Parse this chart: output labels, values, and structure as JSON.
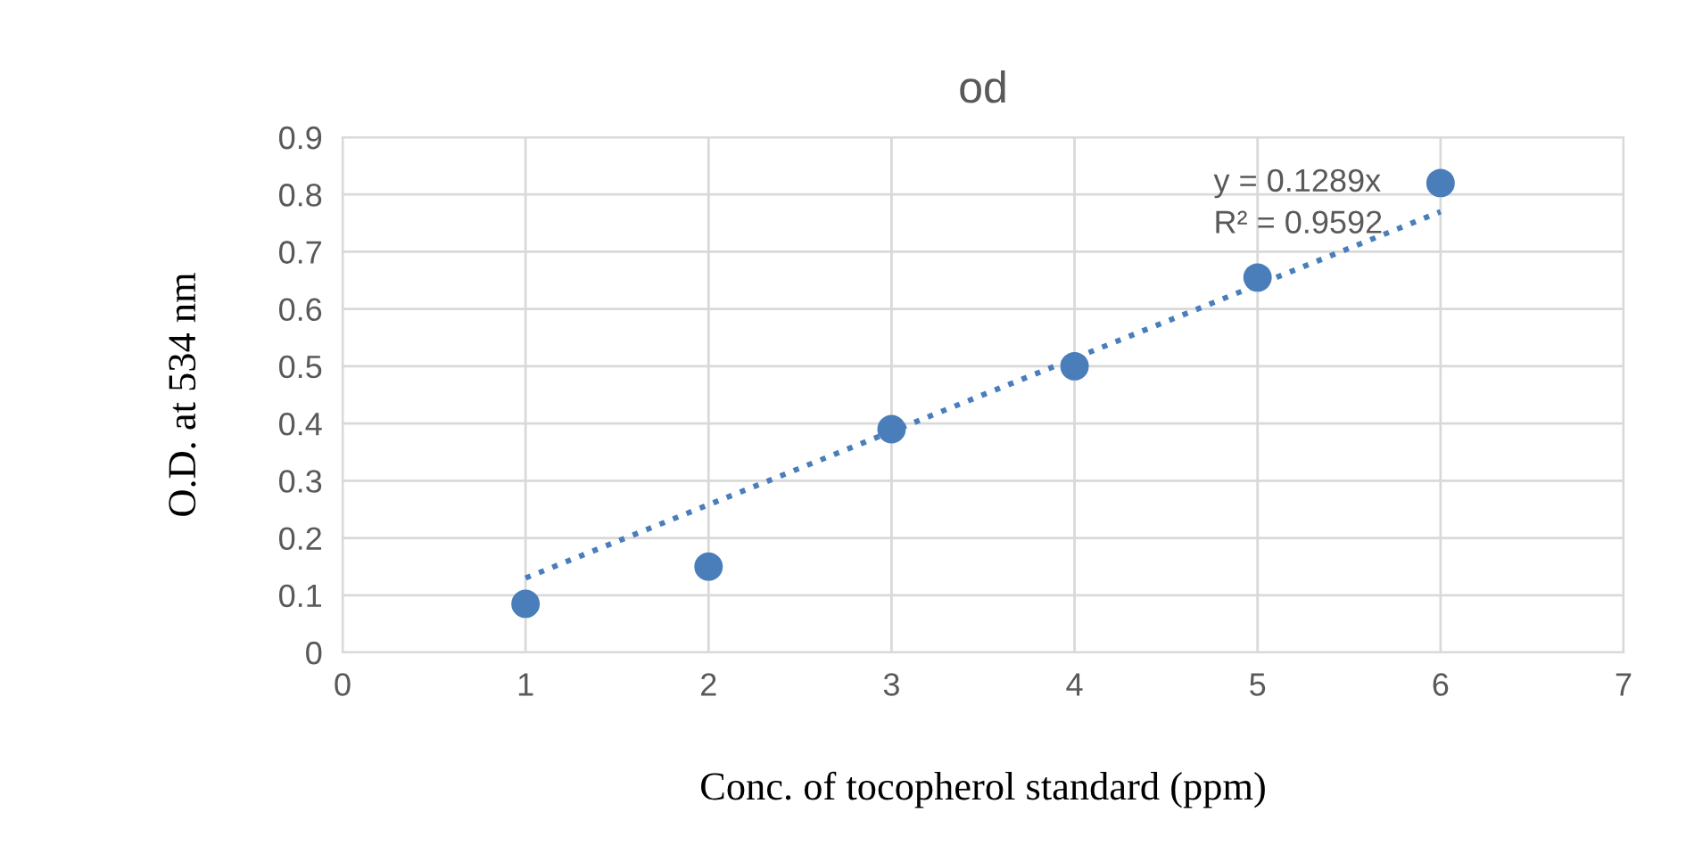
{
  "chart_data": {
    "type": "scatter",
    "title": "od",
    "xlabel": "Conc. of tocopherol standard (ppm)",
    "ylabel": "O.D. at 534 nm",
    "x": [
      1,
      2,
      3,
      4,
      5,
      6
    ],
    "series": [
      {
        "color": "#4a7ebb",
        "marker": "circle",
        "values": [
          0.085,
          0.15,
          0.39,
          0.5,
          0.655,
          0.82
        ]
      },
      {
        "type": "line",
        "color": "#4a7ebb",
        "line_style": "dotted",
        "marker": "none",
        "x": [
          1,
          6
        ],
        "values": [
          0.13,
          0.77
        ]
      }
    ],
    "annotations": [
      "y = 0.1289x\nR² = 0.9592"
    ],
    "xlim": [
      0,
      7
    ],
    "xticks": [
      0,
      1,
      2,
      3,
      4,
      5,
      6,
      7
    ],
    "ylim": [
      0,
      0.9
    ],
    "yticks": [
      0,
      0.1,
      0.2,
      0.3,
      0.4,
      0.5,
      0.6,
      0.7,
      0.8,
      0.9
    ],
    "grid": true,
    "legend": false
  }
}
